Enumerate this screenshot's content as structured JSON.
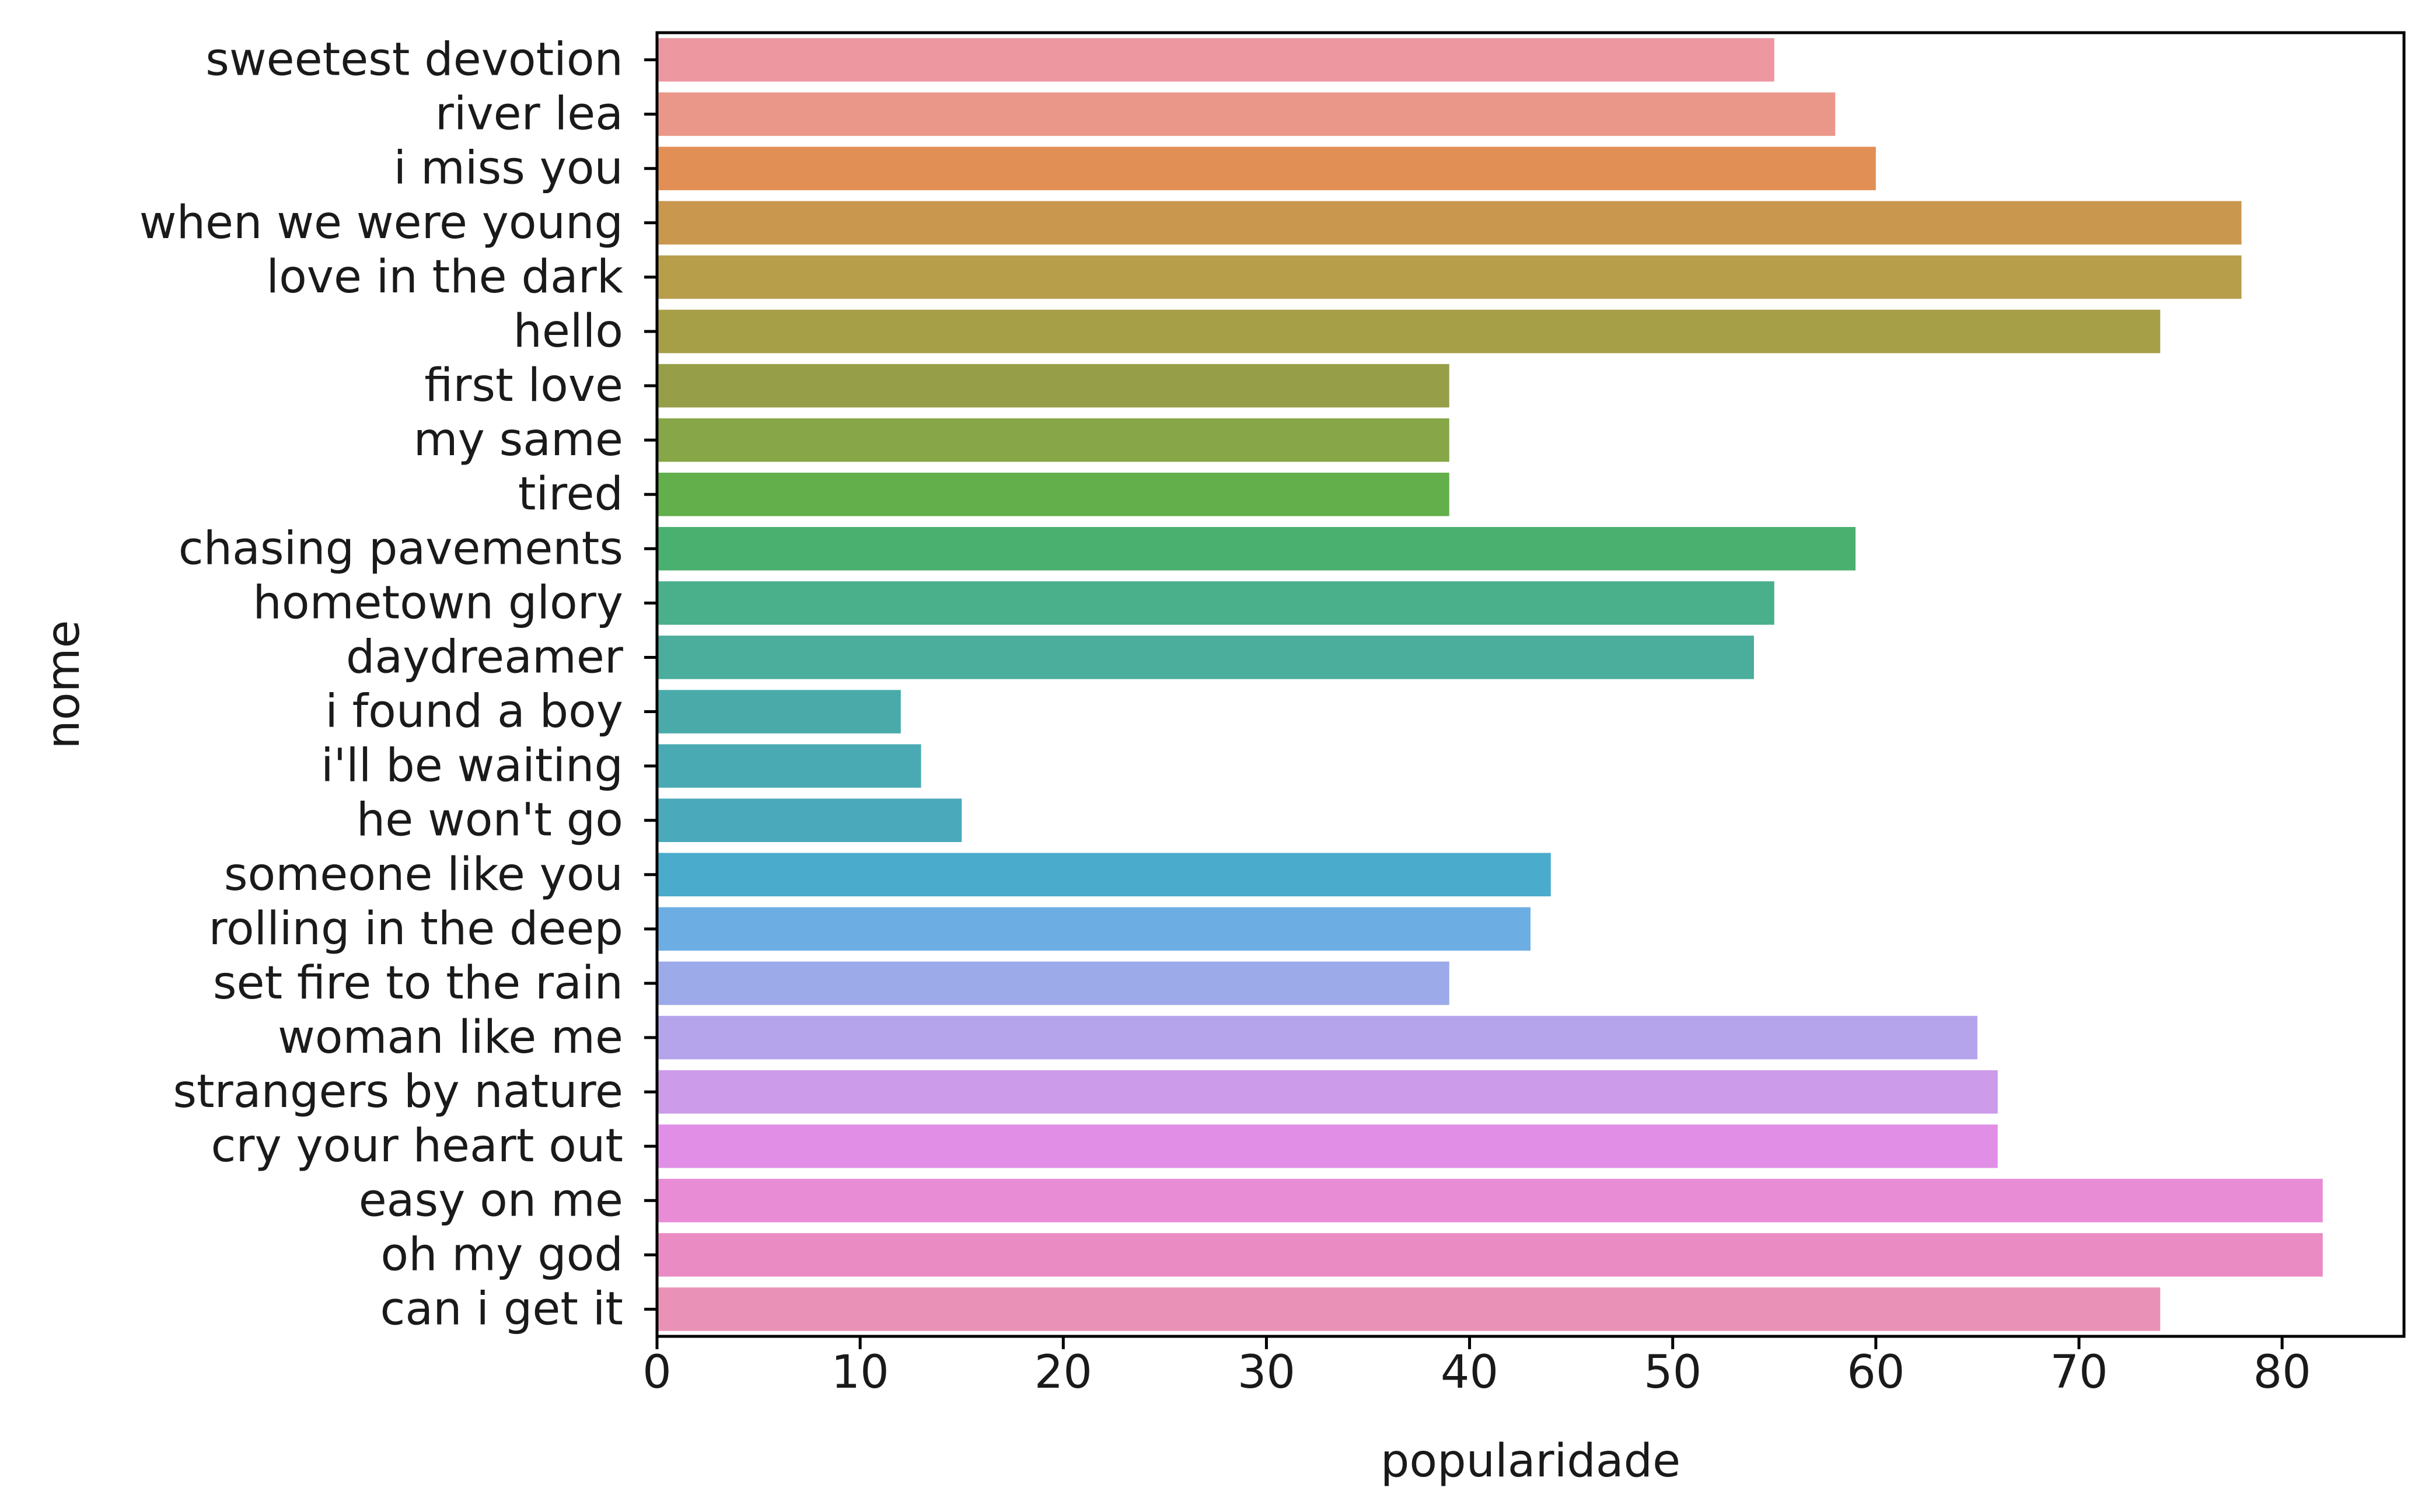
{
  "chart_data": {
    "type": "bar",
    "orientation": "horizontal",
    "xlabel": "popularidade",
    "ylabel": "nome",
    "xlim": [
      0,
      86
    ],
    "xticks": [
      0,
      10,
      20,
      30,
      40,
      50,
      60,
      70,
      80
    ],
    "grid": false,
    "categories": [
      "sweetest devotion",
      "river lea",
      "i miss you",
      "when we were young",
      "love in the dark",
      "hello",
      "first love",
      "my same",
      "tired",
      "chasing pavements",
      "hometown glory",
      "daydreamer",
      "i found a boy",
      "i'll be waiting",
      "he won't go",
      "someone like you",
      "rolling in the deep",
      "set fire to the rain",
      "woman like me",
      "strangers by nature",
      "cry your heart out",
      "easy on me",
      "oh my god",
      "can i get it"
    ],
    "values": [
      55,
      58,
      60,
      78,
      78,
      74,
      39,
      39,
      39,
      59,
      55,
      54,
      12,
      13,
      15,
      44,
      43,
      39,
      65,
      66,
      66,
      82,
      82,
      74
    ],
    "colors": [
      "#ED97A0",
      "#EA978A",
      "#E18F55",
      "#C9974D",
      "#B79E4A",
      "#A79E48",
      "#979E48",
      "#86A648",
      "#62AF4B",
      "#4AB070",
      "#4AAF8B",
      "#4BAD9B",
      "#4AAAAA",
      "#4AAAB4",
      "#4AAABC",
      "#4BABCC",
      "#6CAEE3",
      "#9DAAE9",
      "#B5A4EC",
      "#CC9BE9",
      "#E18EE6",
      "#E88CD6",
      "#EA8BC4",
      "#EA91B7"
    ]
  }
}
